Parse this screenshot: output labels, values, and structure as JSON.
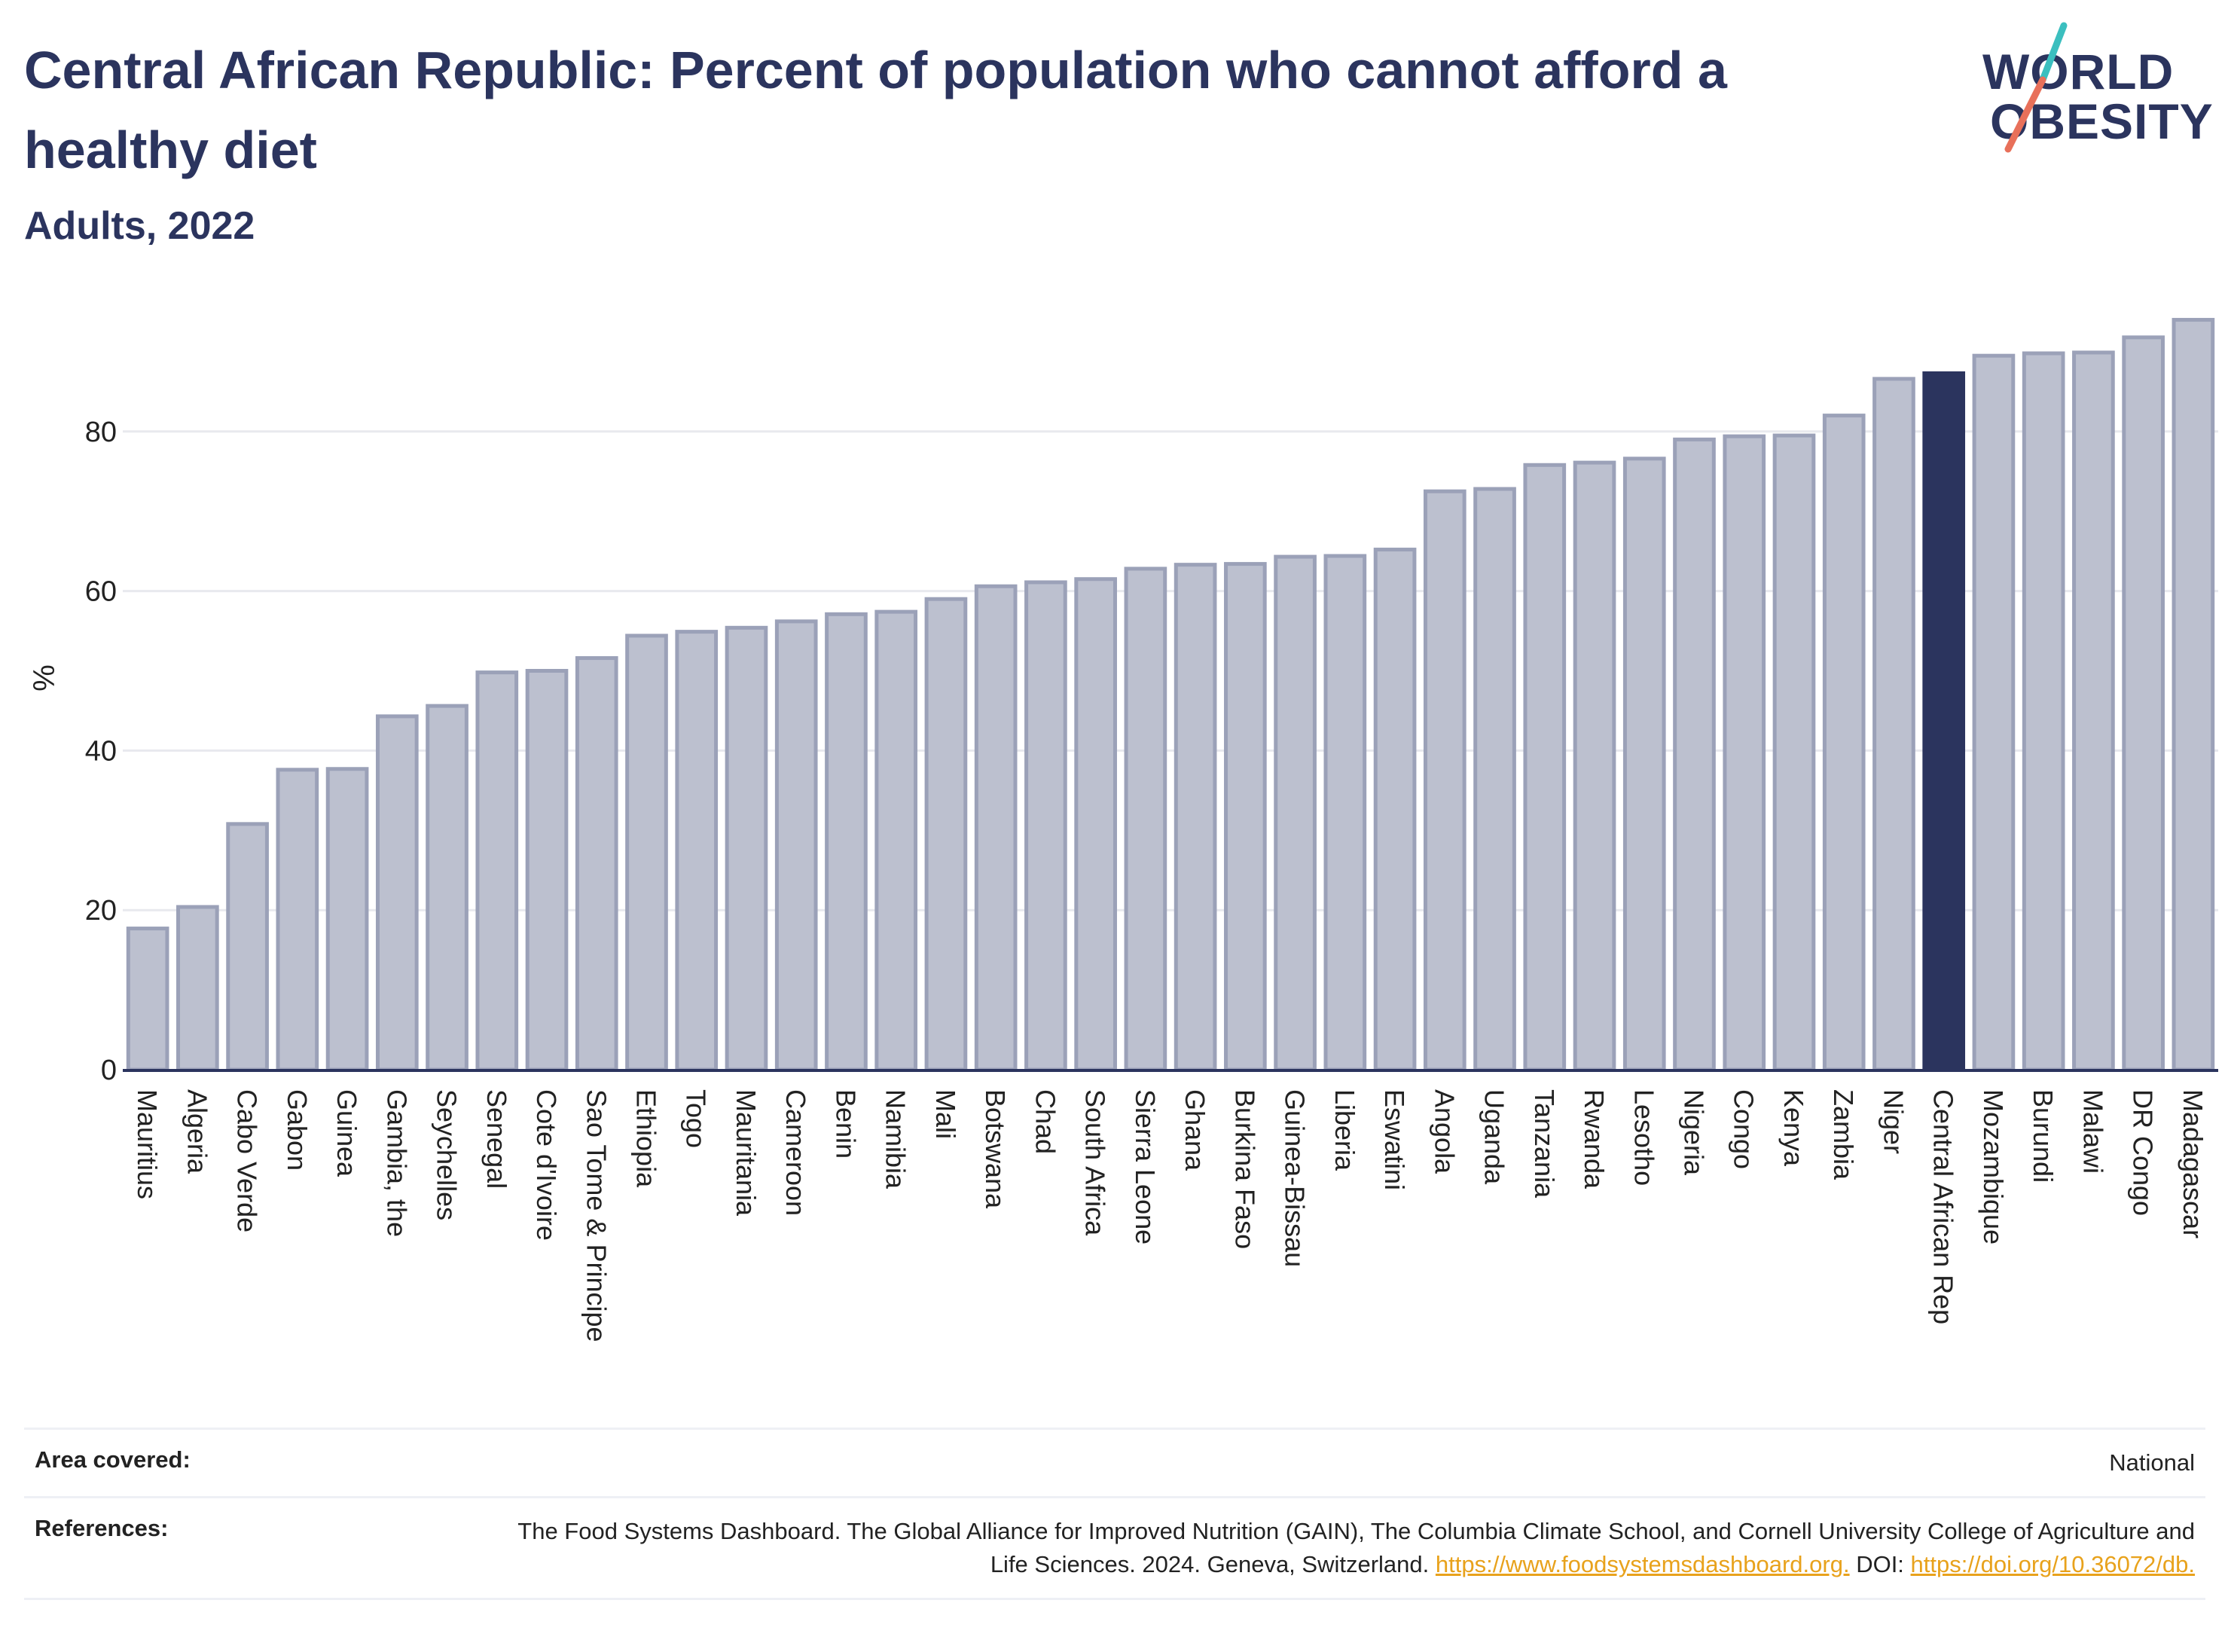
{
  "title": "Central African Republic: Percent of population who cannot afford a healthy diet",
  "subtitle": "Adults, 2022",
  "logo": {
    "line1": "WORLD",
    "line2": "OBESITY"
  },
  "colors": {
    "bar_fill": "#bcc0cf",
    "bar_stroke": "#9ba1b8",
    "highlight": "#2b345e",
    "text": "#2b345e",
    "grid": "#e8e9ee",
    "link": "#e8a21c",
    "logo_slash_teal": "#3bbfbf",
    "logo_slash_coral": "#e8705a"
  },
  "chart_data": {
    "type": "bar",
    "ylabel": "%",
    "ylim": [
      0,
      100
    ],
    "yticks": [
      0,
      20,
      40,
      60,
      80
    ],
    "grid": true,
    "highlight": "Central African Rep",
    "categories": [
      "Mauritius",
      "Algeria",
      "Cabo Verde",
      "Gabon",
      "Guinea",
      "Gambia, the",
      "Seychelles",
      "Senegal",
      "Cote d'Ivoire",
      "Sao Tome & Principe",
      "Ethiopia",
      "Togo",
      "Mauritania",
      "Cameroon",
      "Benin",
      "Namibia",
      "Mali",
      "Botswana",
      "Chad",
      "South Africa",
      "Sierra Leone",
      "Ghana",
      "Burkina Faso",
      "Guinea-Bissau",
      "Liberia",
      "Eswatini",
      "Angola",
      "Uganda",
      "Tanzania",
      "Rwanda",
      "Lesotho",
      "Nigeria",
      "Congo",
      "Kenya",
      "Zambia",
      "Niger",
      "Central African Rep",
      "Mozambique",
      "Burundi",
      "Malawi",
      "DR Congo",
      "Madagascar"
    ],
    "values": [
      17.7,
      20.4,
      30.8,
      37.6,
      37.7,
      44.3,
      45.6,
      49.8,
      50.0,
      51.6,
      54.4,
      54.9,
      55.4,
      56.2,
      57.1,
      57.4,
      59.0,
      60.6,
      61.1,
      61.5,
      62.8,
      63.3,
      63.4,
      64.3,
      64.4,
      65.2,
      72.5,
      72.8,
      75.8,
      76.1,
      76.6,
      79.0,
      79.4,
      79.5,
      82.0,
      86.6,
      87.3,
      89.5,
      89.8,
      89.9,
      91.8,
      94.0
    ]
  },
  "footer": {
    "area_label": "Area covered:",
    "area_value": "National",
    "refs_label": "References:",
    "refs_text_1": "The Food Systems Dashboard. The Global Alliance for Improved Nutrition (GAIN), The Columbia Climate School, and Cornell University College of Agriculture and Life Sciences. 2024. Geneva, Switzerland.",
    "refs_link_1": "https://www.foodsystemsdashboard.org.",
    "refs_text_2": "DOI:",
    "refs_link_2": "https://doi.org/10.36072/db."
  }
}
